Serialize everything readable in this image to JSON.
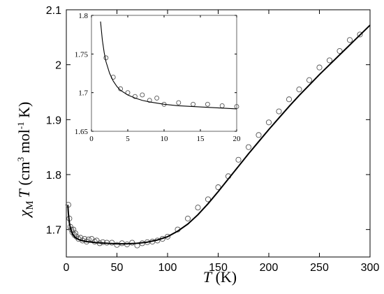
{
  "chart_data": [
    {
      "type": "scatter",
      "xlabel": {
        "italic": "T",
        "rest": " (K)"
      },
      "ylabel": {
        "chi": "χ",
        "sub": "M",
        "T": "T",
        "unit_a": " (cm",
        "sup3": "3",
        "unit_b": " mol",
        "supm1": "-1",
        "unit_c": " K)"
      },
      "xlim": [
        0,
        300
      ],
      "ylim": [
        1.65,
        2.1
      ],
      "xticks": [
        0,
        50,
        100,
        150,
        200,
        250,
        300
      ],
      "yticks": [
        1.7,
        1.8,
        1.9,
        2.0,
        2.1
      ],
      "xtick_labels": [
        "0",
        "50",
        "100",
        "150",
        "200",
        "250",
        "300"
      ],
      "ytick_labels": [
        "1.7",
        "1.8",
        "1.9",
        "2",
        "2.1"
      ],
      "grid": false,
      "series": [
        {
          "kind": "markers",
          "marker": "open-circle",
          "x": [
            2,
            3,
            4,
            5,
            6,
            7,
            8,
            9,
            10,
            12,
            14,
            16,
            18,
            20,
            22,
            25,
            28,
            30,
            33,
            36,
            40,
            45,
            50,
            55,
            60,
            65,
            70,
            75,
            80,
            85,
            90,
            95,
            100,
            110,
            120,
            130,
            140,
            150,
            160,
            170,
            180,
            190,
            200,
            210,
            220,
            230,
            240,
            250,
            260,
            270,
            280,
            290
          ],
          "y": [
            1.745,
            1.72,
            1.705,
            1.7,
            1.695,
            1.7,
            1.69,
            1.693,
            1.687,
            1.683,
            1.685,
            1.68,
            1.683,
            1.678,
            1.682,
            1.683,
            1.678,
            1.68,
            1.675,
            1.677,
            1.676,
            1.676,
            1.672,
            1.675,
            1.673,
            1.676,
            1.671,
            1.675,
            1.677,
            1.678,
            1.68,
            1.683,
            1.687,
            1.7,
            1.72,
            1.74,
            1.755,
            1.777,
            1.797,
            1.827,
            1.85,
            1.872,
            1.895,
            1.915,
            1.937,
            1.955,
            1.972,
            1.995,
            2.008,
            2.025,
            2.045,
            2.055
          ]
        },
        {
          "kind": "fit-line",
          "x": [
            1.5,
            2,
            3,
            4,
            5,
            6,
            8,
            10,
            12,
            15,
            20,
            25,
            30,
            40,
            50,
            60,
            70,
            80,
            90,
            100,
            110,
            120,
            130,
            140,
            150,
            160,
            170,
            180,
            190,
            200,
            210,
            220,
            230,
            240,
            250,
            260,
            270,
            280,
            290,
            300
          ],
          "y": [
            1.745,
            1.73,
            1.712,
            1.703,
            1.697,
            1.692,
            1.687,
            1.684,
            1.682,
            1.68,
            1.678,
            1.677,
            1.676,
            1.675,
            1.674,
            1.674,
            1.675,
            1.677,
            1.681,
            1.687,
            1.697,
            1.71,
            1.727,
            1.747,
            1.769,
            1.792,
            1.815,
            1.838,
            1.86,
            1.882,
            1.903,
            1.924,
            1.944,
            1.963,
            1.982,
            2.0,
            2.018,
            2.036,
            2.054,
            2.072
          ]
        }
      ]
    },
    {
      "type": "scatter",
      "inset": true,
      "xlim": [
        0,
        20
      ],
      "ylim": [
        1.65,
        1.8
      ],
      "xticks": [
        0,
        5,
        10,
        15,
        20
      ],
      "yticks": [
        1.65,
        1.7,
        1.75,
        1.8
      ],
      "xtick_labels": [
        "0",
        "5",
        "10",
        "15",
        "20"
      ],
      "ytick_labels": [
        "1.65",
        "1.7",
        "1.75",
        "1.8"
      ],
      "series": [
        {
          "kind": "markers",
          "marker": "open-circle",
          "x": [
            2,
            3,
            4,
            5,
            6,
            7,
            8,
            9,
            10,
            12,
            14,
            16,
            18,
            20
          ],
          "y": [
            1.745,
            1.72,
            1.705,
            1.7,
            1.695,
            1.697,
            1.69,
            1.693,
            1.685,
            1.687,
            1.685,
            1.685,
            1.683,
            1.682
          ]
        },
        {
          "kind": "fit-line",
          "x": [
            1.25,
            1.5,
            1.75,
            2,
            2.5,
            3,
            3.5,
            4,
            5,
            6,
            7,
            8,
            10,
            12,
            14,
            16,
            18,
            20
          ],
          "y": [
            1.792,
            1.768,
            1.752,
            1.74,
            1.725,
            1.715,
            1.708,
            1.703,
            1.697,
            1.693,
            1.69,
            1.688,
            1.685,
            1.683,
            1.682,
            1.681,
            1.68,
            1.679
          ]
        }
      ]
    }
  ]
}
